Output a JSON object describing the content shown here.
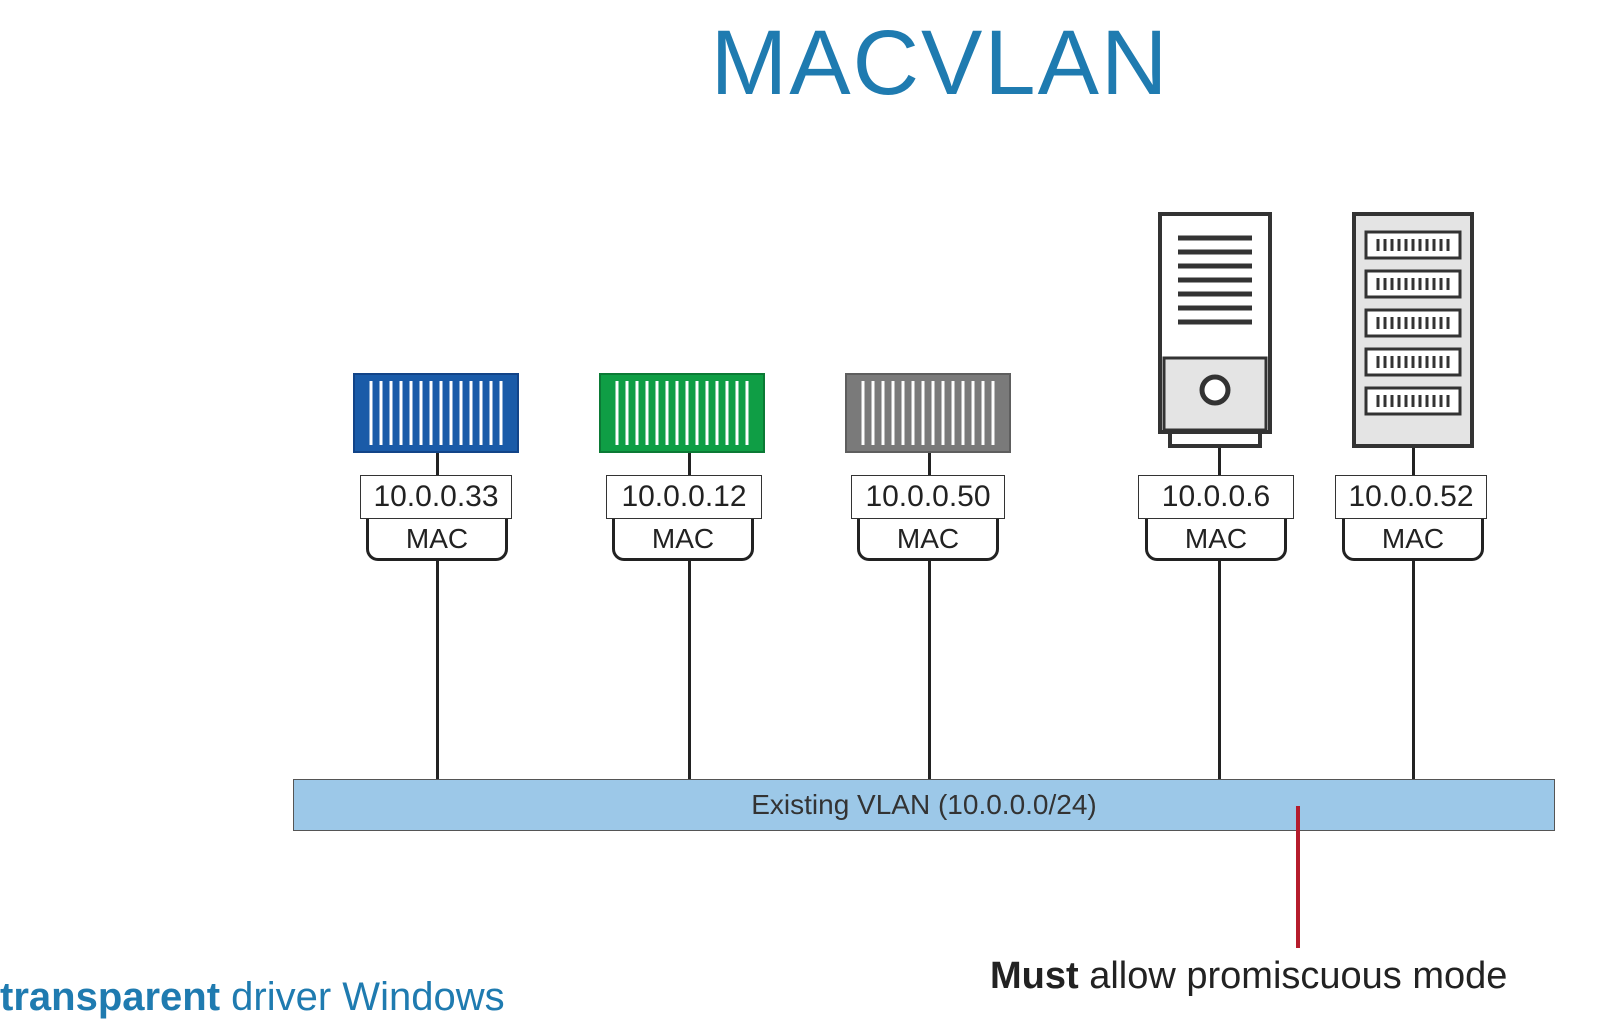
{
  "title": "MACVLAN",
  "endpoints": [
    {
      "ip": "10.0.0.33",
      "mac": "MAC",
      "kind": "container",
      "color": "#1a5ba8",
      "icon": "container-blue-icon"
    },
    {
      "ip": "10.0.0.12",
      "mac": "MAC",
      "kind": "container",
      "color": "#0f9e45",
      "icon": "container-green-icon"
    },
    {
      "ip": "10.0.0.50",
      "mac": "MAC",
      "kind": "container",
      "color": "#7a7a7a",
      "icon": "container-gray-icon"
    },
    {
      "ip": "10.0.0.6",
      "mac": "MAC",
      "kind": "server",
      "icon": "tower-server-icon"
    },
    {
      "ip": "10.0.0.52",
      "mac": "MAC",
      "kind": "rack",
      "icon": "rack-server-icon"
    }
  ],
  "vlan": {
    "label": "Existing VLAN",
    "subnet": "(10.0.0.0/24)"
  },
  "callout": {
    "bold": "Must",
    "rest": " allow promiscuous mode"
  },
  "footer": {
    "highlight": "transparent",
    "rest": " driver Windows"
  },
  "colors": {
    "title": "#1f7bb0",
    "vlan_fill": "#9cc8e8",
    "callout_line": "#b51c2c"
  }
}
